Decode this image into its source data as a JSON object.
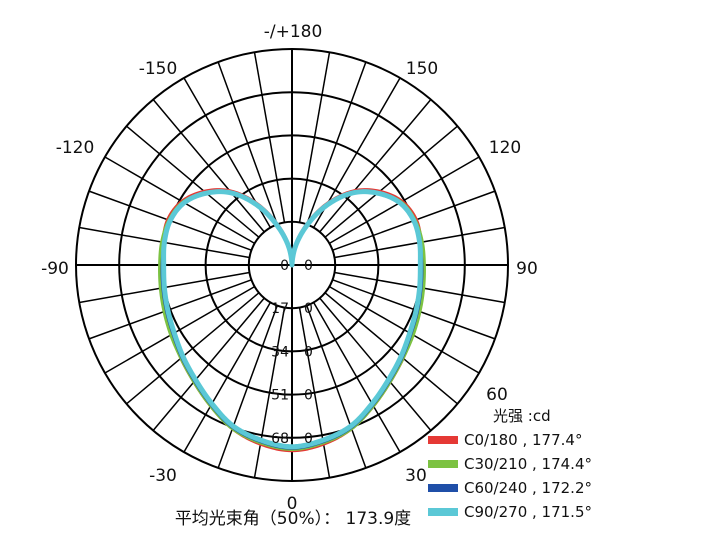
{
  "chart_data": {
    "type": "polar",
    "title": "",
    "angle_labels": [
      "-/+180",
      "150",
      "120",
      "90",
      "60",
      "30",
      "0",
      "-30",
      "-90",
      "-120",
      "-150"
    ],
    "radial_ticks": [
      "0",
      "17",
      "34",
      "51",
      "68"
    ],
    "radial_unit": "0",
    "rmax": 85,
    "legend_title": "光强 :cd",
    "series": [
      {
        "name": "C0/180 , 177.4°",
        "color": "#e53935",
        "angles": [
          0,
          10,
          20,
          30,
          40,
          50,
          60,
          70,
          80,
          90,
          100,
          110,
          120,
          130,
          140,
          150,
          160,
          170,
          180,
          -10,
          -20,
          -30,
          -40,
          -50,
          -60,
          -70,
          -80,
          -90,
          -100,
          -110,
          -120,
          -130,
          -140,
          -150,
          -160,
          -170
        ],
        "values": [
          73,
          71.5,
          68.5,
          64,
          60,
          57,
          54.5,
          52.5,
          51.5,
          51,
          51.5,
          52,
          50,
          45,
          38,
          28,
          17,
          8,
          0,
          71.5,
          68.5,
          64,
          60,
          57,
          54.5,
          52.5,
          51.5,
          51,
          51.5,
          52,
          50,
          45,
          38,
          28,
          17,
          8
        ]
      },
      {
        "name": "C30/210 , 174.4°",
        "color": "#7cc242",
        "angles": [
          0,
          10,
          20,
          30,
          40,
          50,
          60,
          70,
          80,
          90,
          100,
          110,
          120,
          130,
          140,
          150,
          160,
          170,
          180,
          -10,
          -20,
          -30,
          -40,
          -50,
          -60,
          -70,
          -80,
          -90,
          -100,
          -110,
          -120,
          -130,
          -140,
          -150,
          -160,
          -170
        ],
        "values": [
          72.5,
          71,
          68.5,
          64,
          60,
          57,
          55,
          53.5,
          52.5,
          52,
          52,
          51.5,
          49.5,
          44,
          37,
          27.5,
          16.5,
          7.5,
          0,
          71,
          68.5,
          64,
          60,
          57,
          55,
          53.5,
          52.5,
          52,
          52,
          51.5,
          49.5,
          44,
          37,
          27.5,
          16.5,
          7.5
        ]
      },
      {
        "name": "C60/240 , 172.2°",
        "color": "#1f4fa8",
        "angles": [
          0,
          10,
          20,
          30,
          40,
          50,
          60,
          70,
          80,
          90,
          100,
          110,
          120,
          130,
          140,
          150,
          160,
          170,
          180,
          -10,
          -20,
          -30,
          -40,
          -50,
          -60,
          -70,
          -80,
          -90,
          -100,
          -110,
          -120,
          -130,
          -140,
          -150,
          -160,
          -170
        ],
        "values": [
          72,
          70.5,
          68,
          63.5,
          59.5,
          56.5,
          54,
          52.5,
          51.5,
          51,
          51,
          51,
          49,
          44,
          37,
          27,
          16,
          7,
          0,
          70.5,
          68,
          63.5,
          59.5,
          56.5,
          54,
          52.5,
          51.5,
          51,
          51,
          51,
          49,
          44,
          37,
          27,
          16,
          7
        ]
      },
      {
        "name": "C90/270 , 171.5°",
        "color": "#5bc8d6",
        "angles": [
          0,
          10,
          20,
          30,
          40,
          50,
          60,
          70,
          80,
          90,
          100,
          110,
          120,
          130,
          140,
          150,
          160,
          170,
          180,
          -10,
          -20,
          -30,
          -40,
          -50,
          -60,
          -70,
          -80,
          -90,
          -100,
          -110,
          -120,
          -130,
          -140,
          -150,
          -160,
          -170
        ],
        "values": [
          71.5,
          70,
          67.5,
          63,
          59,
          56,
          53.5,
          52,
          51,
          50.5,
          51,
          51,
          49,
          44,
          37,
          27,
          16,
          7,
          0,
          70,
          67.5,
          63,
          59,
          56,
          53.5,
          52,
          51,
          50.5,
          51,
          51,
          49,
          44,
          37,
          27,
          16,
          7
        ]
      }
    ],
    "footer": "平均光束角（50%）： 173.9度"
  }
}
